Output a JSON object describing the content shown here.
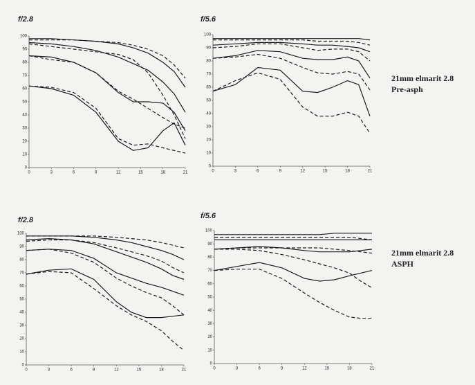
{
  "chart_data": [
    {
      "type": "line",
      "title": "f/2.8",
      "x": [
        0,
        3,
        6,
        9,
        12,
        14,
        16,
        18,
        19.5,
        21
      ],
      "xlim": [
        0,
        21
      ],
      "xticks": [
        0,
        3,
        6,
        9,
        12,
        15,
        18,
        21
      ],
      "ylim": [
        0,
        100
      ],
      "yticks": [
        0,
        10,
        20,
        30,
        40,
        50,
        60,
        70,
        80,
        90,
        100
      ],
      "series": [
        {
          "color": "#1a1a1a",
          "dashed": false,
          "values": [
            98,
            98,
            97,
            96,
            94,
            91,
            87,
            80,
            73,
            61
          ]
        },
        {
          "color": "#1a1a1a",
          "dashed": true,
          "values": [
            97,
            97,
            97,
            96,
            95,
            93,
            90,
            85,
            78,
            68
          ]
        },
        {
          "color": "#1a1a1a",
          "dashed": false,
          "values": [
            95,
            94,
            92,
            89,
            84,
            79,
            74,
            65,
            56,
            42
          ]
        },
        {
          "color": "#1a1a1a",
          "dashed": true,
          "values": [
            94,
            92,
            90,
            88,
            86,
            82,
            72,
            55,
            40,
            22
          ]
        },
        {
          "color": "#1a1a1a",
          "dashed": false,
          "values": [
            85,
            84,
            80,
            72,
            57,
            50,
            50,
            49,
            42,
            28
          ]
        },
        {
          "color": "#1a1a1a",
          "dashed": true,
          "values": [
            85,
            82,
            80,
            72,
            58,
            52,
            45,
            38,
            33,
            30
          ]
        },
        {
          "color": "#1a1a1a",
          "dashed": false,
          "values": [
            62,
            60,
            55,
            42,
            20,
            13,
            15,
            28,
            34,
            17
          ]
        },
        {
          "color": "#1a1a1a",
          "dashed": true,
          "values": [
            62,
            61,
            57,
            45,
            22,
            17,
            18,
            15,
            13,
            11
          ]
        }
      ]
    },
    {
      "type": "line",
      "title": "f/5.6",
      "annotations": [
        "21mm elmarit 2.8",
        "Pre-asph"
      ],
      "x": [
        0,
        3,
        6,
        9,
        12,
        14,
        16,
        18,
        19.5,
        21
      ],
      "xlim": [
        0,
        21
      ],
      "xticks": [
        0,
        3,
        6,
        9,
        12,
        15,
        18,
        21
      ],
      "ylim": [
        0,
        100
      ],
      "yticks": [
        0,
        10,
        20,
        30,
        40,
        50,
        60,
        70,
        80,
        90,
        100
      ],
      "series": [
        {
          "color": "#1a1a1a",
          "dashed": false,
          "values": [
            97,
            97,
            97,
            97,
            97,
            97,
            97,
            97,
            97,
            96
          ]
        },
        {
          "color": "#1a1a1a",
          "dashed": true,
          "values": [
            96,
            96,
            96,
            96,
            96,
            95,
            95,
            95,
            94,
            92
          ]
        },
        {
          "color": "#1a1a1a",
          "dashed": false,
          "values": [
            92,
            93,
            94,
            94,
            93,
            92,
            92,
            91,
            90,
            87
          ]
        },
        {
          "color": "#1a1a1a",
          "dashed": true,
          "values": [
            90,
            91,
            93,
            93,
            90,
            88,
            89,
            89,
            87,
            80
          ]
        },
        {
          "color": "#1a1a1a",
          "dashed": false,
          "values": [
            82,
            84,
            88,
            87,
            82,
            81,
            81,
            83,
            80,
            67
          ]
        },
        {
          "color": "#1a1a1a",
          "dashed": true,
          "values": [
            82,
            83,
            85,
            82,
            75,
            71,
            70,
            72,
            70,
            58
          ]
        },
        {
          "color": "#1a1a1a",
          "dashed": false,
          "values": [
            57,
            62,
            75,
            73,
            57,
            56,
            60,
            65,
            62,
            38
          ]
        },
        {
          "color": "#1a1a1a",
          "dashed": true,
          "values": [
            57,
            65,
            71,
            66,
            45,
            38,
            38,
            41,
            38,
            25
          ]
        }
      ]
    },
    {
      "type": "line",
      "title": "f/2.8",
      "x": [
        0,
        3,
        6,
        9,
        12,
        14,
        16,
        18,
        19.5,
        21
      ],
      "xlim": [
        0,
        21
      ],
      "xticks": [
        0,
        3,
        6,
        9,
        12,
        15,
        18,
        21
      ],
      "ylim": [
        0,
        100
      ],
      "yticks": [
        0,
        10,
        20,
        30,
        40,
        50,
        60,
        70,
        80,
        90,
        100
      ],
      "series": [
        {
          "color": "#1a1a1a",
          "dashed": false,
          "values": [
            98,
            98,
            98,
            97,
            95,
            93,
            90,
            87,
            84,
            80
          ]
        },
        {
          "color": "#1a1a1a",
          "dashed": true,
          "values": [
            98,
            98,
            98,
            98,
            97,
            96,
            95,
            93,
            91,
            89
          ]
        },
        {
          "color": "#1a1a1a",
          "dashed": false,
          "values": [
            95,
            96,
            95,
            92,
            86,
            82,
            78,
            73,
            68,
            65
          ]
        },
        {
          "color": "#1a1a1a",
          "dashed": true,
          "values": [
            94,
            95,
            95,
            93,
            89,
            86,
            83,
            79,
            74,
            70
          ]
        },
        {
          "color": "#1a1a1a",
          "dashed": false,
          "values": [
            87,
            88,
            87,
            81,
            70,
            66,
            62,
            59,
            56,
            53
          ]
        },
        {
          "color": "#1a1a1a",
          "dashed": true,
          "values": [
            87,
            88,
            85,
            78,
            66,
            60,
            55,
            51,
            45,
            38
          ]
        },
        {
          "color": "#1a1a1a",
          "dashed": false,
          "values": [
            69,
            72,
            73,
            65,
            48,
            40,
            36,
            36,
            37,
            38
          ]
        },
        {
          "color": "#1a1a1a",
          "dashed": true,
          "values": [
            69,
            71,
            70,
            58,
            45,
            38,
            33,
            26,
            18,
            11
          ]
        }
      ]
    },
    {
      "type": "line",
      "title": "f/5.6",
      "annotations": [
        "21mm elmarit 2.8",
        "ASPH"
      ],
      "x": [
        0,
        3,
        6,
        9,
        12,
        14,
        16,
        18,
        19.5,
        21
      ],
      "xlim": [
        0,
        21
      ],
      "xticks": [
        0,
        3,
        6,
        9,
        12,
        15,
        18,
        21
      ],
      "ylim": [
        0,
        100
      ],
      "yticks": [
        0,
        10,
        20,
        30,
        40,
        50,
        60,
        70,
        80,
        90,
        100
      ],
      "series": [
        {
          "color": "#1a1a1a",
          "dashed": false,
          "values": [
            97,
            97,
            97,
            97,
            97,
            97,
            98,
            98,
            98,
            98
          ]
        },
        {
          "color": "#1a1a1a",
          "dashed": true,
          "values": [
            95,
            95,
            95,
            95,
            95,
            95,
            95,
            95,
            94,
            93
          ]
        },
        {
          "color": "#1a1a1a",
          "dashed": false,
          "values": [
            93,
            93,
            93,
            93,
            93,
            93,
            93,
            93,
            93,
            93
          ]
        },
        {
          "color": "#1a1a1a",
          "dashed": true,
          "values": [
            86,
            87,
            87,
            87,
            87,
            87,
            86,
            85,
            84,
            83
          ]
        },
        {
          "color": "#1a1a1a",
          "dashed": false,
          "values": [
            86,
            87,
            88,
            87,
            85,
            84,
            84,
            84,
            85,
            86
          ]
        },
        {
          "color": "#1a1a1a",
          "dashed": true,
          "values": [
            86,
            86,
            85,
            82,
            78,
            75,
            72,
            68,
            62,
            57
          ]
        },
        {
          "color": "#1a1a1a",
          "dashed": false,
          "values": [
            70,
            73,
            76,
            72,
            64,
            62,
            63,
            66,
            68,
            70
          ]
        },
        {
          "color": "#1a1a1a",
          "dashed": true,
          "values": [
            70,
            71,
            71,
            64,
            53,
            46,
            40,
            35,
            34,
            34
          ]
        }
      ]
    }
  ]
}
